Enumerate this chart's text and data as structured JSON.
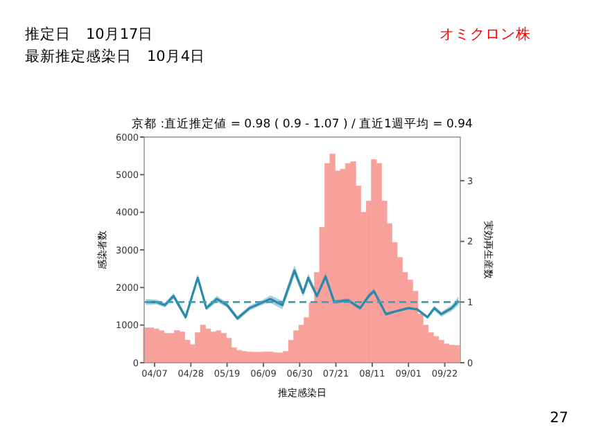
{
  "chart_data": {
    "type": "bar",
    "title": "京都 :直近推定値 = 0.98 ( 0.9 - 1.07 ) / 直近1週平均 = 0.94",
    "xlabel": "推定感染日",
    "ylabel": "感染者数",
    "y2label": "実効再生産数",
    "annotations": [
      "推定日　10月17日",
      "最新推定感染日　10月4日",
      "オミクロン株",
      "27"
    ],
    "xlim": [
      "--04-01",
      "--10-01"
    ],
    "xticks": [
      {
        "value": "--04-07",
        "label": "04/07"
      },
      {
        "value": "--04-28",
        "label": "04/28"
      },
      {
        "value": "--05-19",
        "label": "05/19"
      },
      {
        "value": "--06-09",
        "label": "06/09"
      },
      {
        "value": "--06-30",
        "label": "06/30"
      },
      {
        "value": "--07-21",
        "label": "07/21"
      },
      {
        "value": "--08-11",
        "label": "08/11"
      },
      {
        "value": "--09-01",
        "label": "09/01"
      },
      {
        "value": "--09-22",
        "label": "09/22"
      }
    ],
    "ylim": [
      0,
      6000
    ],
    "yticks": [
      0,
      1000,
      2000,
      3000,
      4000,
      5000,
      6000
    ],
    "y2lim": [
      0,
      3.72
    ],
    "y2ticks": [
      0,
      1,
      2,
      3
    ],
    "ref_lines": [
      {
        "axis": "y2",
        "value": 1,
        "color": "#3aa0c0",
        "line_style": "dashed"
      }
    ],
    "series": [
      {
        "color": "#f8a09a",
        "x": [
          "--04-02",
          "--04-05",
          "--04-08",
          "--04-11",
          "--04-14",
          "--04-17",
          "--04-20",
          "--04-23",
          "--04-26",
          "--04-29",
          "--05-02",
          "--05-05",
          "--05-08",
          "--05-11",
          "--05-14",
          "--05-17",
          "--05-20",
          "--05-23",
          "--05-26",
          "--05-29",
          "--06-01",
          "--06-04",
          "--06-07",
          "--06-10",
          "--06-13",
          "--06-16",
          "--06-19",
          "--06-22",
          "--06-25",
          "--06-28",
          "--07-01",
          "--07-04",
          "--07-07",
          "--07-10",
          "--07-13",
          "--07-16",
          "--07-19",
          "--07-22",
          "--07-25",
          "--07-28",
          "--07-31",
          "--08-03",
          "--08-06",
          "--08-09",
          "--08-12",
          "--08-15",
          "--08-18",
          "--08-21",
          "--08-24",
          "--08-27",
          "--08-30",
          "--09-02",
          "--09-05",
          "--09-08",
          "--09-11",
          "--09-14",
          "--09-17",
          "--09-20",
          "--09-23",
          "--09-26",
          "--09-29"
        ],
        "values": [
          930,
          930,
          900,
          850,
          780,
          780,
          860,
          820,
          600,
          480,
          800,
          1000,
          900,
          820,
          850,
          780,
          650,
          400,
          330,
          300,
          290,
          280,
          280,
          290,
          290,
          270,
          260,
          300,
          600,
          850,
          1000,
          1200,
          1600,
          2400,
          3600,
          5300,
          5550,
          5100,
          5150,
          5300,
          5350,
          4700,
          4000,
          4300,
          5400,
          5300,
          4300,
          3700,
          3200,
          2800,
          2400,
          2200,
          1900,
          1300,
          1000,
          800,
          700,
          600,
          500,
          470,
          460
        ]
      },
      {
        "type": "line",
        "axis": "y2",
        "color": "#2a8aab",
        "x": [
          "--04-02",
          "--04-08",
          "--04-13",
          "--04-18",
          "--04-25",
          "--05-02",
          "--05-07",
          "--05-13",
          "--05-19",
          "--05-25",
          "--06-01",
          "--06-09",
          "--06-13",
          "--06-20",
          "--06-27",
          "--07-02",
          "--07-05",
          "--07-10",
          "--07-15",
          "--07-20",
          "--07-28",
          "--08-04",
          "--08-09",
          "--08-12",
          "--08-19",
          "--08-25",
          "--09-01",
          "--09-06",
          "--09-12",
          "--09-16",
          "--09-20",
          "--09-26",
          "--09-30"
        ],
        "values": [
          1.0,
          1.0,
          0.95,
          1.1,
          0.75,
          1.4,
          0.9,
          1.05,
          0.95,
          0.73,
          0.9,
          1.0,
          1.05,
          0.95,
          1.52,
          1.15,
          1.4,
          1.1,
          1.42,
          1.0,
          1.03,
          0.9,
          1.1,
          1.18,
          0.8,
          0.85,
          0.9,
          0.88,
          0.75,
          0.9,
          0.8,
          0.9,
          1.02
        ],
        "lower": [
          0.95,
          0.96,
          0.91,
          1.05,
          0.71,
          1.34,
          0.86,
          1.0,
          0.91,
          0.69,
          0.86,
          0.96,
          0.99,
          0.88,
          1.43,
          1.09,
          1.33,
          1.06,
          1.36,
          0.97,
          1.0,
          0.87,
          1.06,
          1.14,
          0.77,
          0.83,
          0.88,
          0.86,
          0.72,
          0.86,
          0.76,
          0.85,
          0.95
        ],
        "upper": [
          1.05,
          1.04,
          0.99,
          1.15,
          0.79,
          1.46,
          0.94,
          1.1,
          0.99,
          0.77,
          0.94,
          1.04,
          1.11,
          1.02,
          1.61,
          1.21,
          1.47,
          1.14,
          1.48,
          1.03,
          1.06,
          0.93,
          1.14,
          1.22,
          0.83,
          0.87,
          0.92,
          0.9,
          0.78,
          0.94,
          0.84,
          0.95,
          1.09
        ]
      }
    ]
  }
}
